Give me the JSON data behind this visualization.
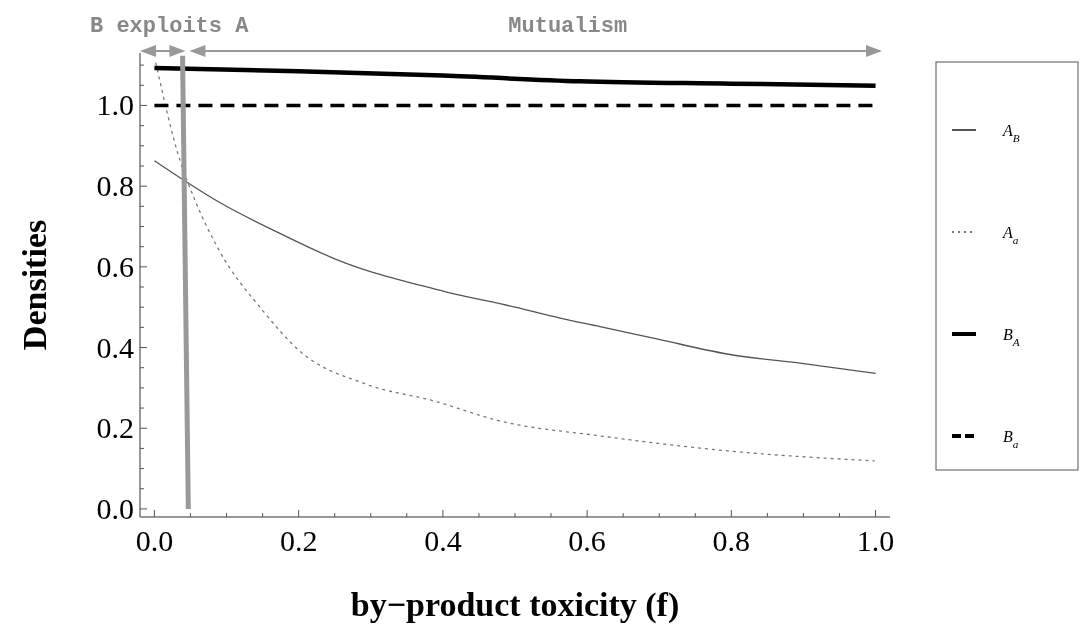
{
  "chart_data": {
    "type": "line",
    "xlabel": "by−product toxicity (f)",
    "ylabel": "Densities",
    "xlim": [
      -0.02,
      1.02
    ],
    "ylim": [
      -0.02,
      1.13
    ],
    "xticks": [
      {
        "value": 0,
        "label": "0.0"
      },
      {
        "value": 0.05,
        "label": null
      },
      {
        "value": 0.1,
        "label": null
      },
      {
        "value": 0.15,
        "label": null
      },
      {
        "value": 0.2,
        "label": "0.2"
      },
      {
        "value": 0.25,
        "label": null
      },
      {
        "value": 0.3,
        "label": null
      },
      {
        "value": 0.35,
        "label": null
      },
      {
        "value": 0.4,
        "label": "0.4"
      },
      {
        "value": 0.45,
        "label": null
      },
      {
        "value": 0.5,
        "label": null
      },
      {
        "value": 0.55,
        "label": null
      },
      {
        "value": 0.6,
        "label": "0.6"
      },
      {
        "value": 0.65,
        "label": null
      },
      {
        "value": 0.7,
        "label": null
      },
      {
        "value": 0.75,
        "label": null
      },
      {
        "value": 0.8,
        "label": "0.8"
      },
      {
        "value": 0.85,
        "label": null
      },
      {
        "value": 0.9,
        "label": null
      },
      {
        "value": 0.95,
        "label": null
      },
      {
        "value": 1,
        "label": "1.0"
      }
    ],
    "yticks": [
      {
        "value": 0,
        "label": "0.0"
      },
      {
        "value": 0.05,
        "label": null
      },
      {
        "value": 0.1,
        "label": null
      },
      {
        "value": 0.15,
        "label": null
      },
      {
        "value": 0.2,
        "label": "0.2"
      },
      {
        "value": 0.25,
        "label": null
      },
      {
        "value": 0.3,
        "label": null
      },
      {
        "value": 0.35,
        "label": null
      },
      {
        "value": 0.4,
        "label": "0.4"
      },
      {
        "value": 0.45,
        "label": null
      },
      {
        "value": 0.5,
        "label": null
      },
      {
        "value": 0.55,
        "label": null
      },
      {
        "value": 0.6,
        "label": "0.6"
      },
      {
        "value": 0.65,
        "label": null
      },
      {
        "value": 0.7,
        "label": null
      },
      {
        "value": 0.75,
        "label": null
      },
      {
        "value": 0.8,
        "label": "0.8"
      },
      {
        "value": 0.85,
        "label": null
      },
      {
        "value": 0.9,
        "label": null
      },
      {
        "value": 0.95,
        "label": null
      },
      {
        "value": 1,
        "label": "1.0"
      },
      {
        "value": 1.05,
        "label": null
      },
      {
        "value": 1.1,
        "label": null
      }
    ],
    "grid": false,
    "legend": "right",
    "annotations": [
      "B exploits A",
      "Mutualism"
    ],
    "series": [
      {
        "name": "A$_{B}$",
        "color": "#555555",
        "line_style": "solid",
        "x": [
          0,
          0.044,
          0.09,
          0.174,
          0.25,
          0.4,
          0.5,
          0.5625,
          0.618,
          0.7,
          0.794,
          0.9,
          1.0
        ],
        "values": [
          0.863,
          0.811,
          0.76,
          0.683,
          0.62,
          0.54,
          0.5,
          0.473,
          0.452,
          0.42,
          0.384,
          0.36,
          0.336
        ]
      },
      {
        "name": "A$_{a}$",
        "color": "#777777",
        "line_style": "dotted",
        "x": [
          0.002,
          0.035,
          0.056,
          0.09,
          0.15,
          0.201,
          0.294,
          0.387,
          0.479,
          0.618,
          0.794,
          0.998
        ],
        "values": [
          1.105,
          0.866,
          0.766,
          0.64,
          0.492,
          0.392,
          0.309,
          0.268,
          0.218,
          0.181,
          0.144,
          0.119
        ]
      },
      {
        "name": "B$_{A}$",
        "color": "#000000",
        "line_style": "solid",
        "x": [
          0,
          0.2,
          0.4,
          0.59,
          0.8,
          1.0
        ],
        "values": [
          1.093,
          1.085,
          1.074,
          1.06,
          1.054,
          1.049
        ]
      },
      {
        "name": "B$_{a}$",
        "color": "#000000",
        "line_style": "dashed",
        "x": [
          0,
          1.0
        ],
        "values": [
          1.0,
          1.0
        ]
      },
      {
        "color": "#999999",
        "line_style": "solid",
        "x": [
          0.039,
          0.047
        ],
        "values": [
          1.123,
          0
        ]
      }
    ]
  }
}
